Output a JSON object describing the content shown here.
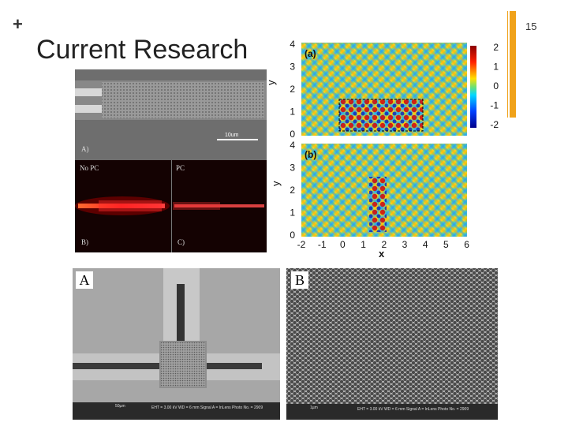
{
  "slide": {
    "plus": "+",
    "title": "Current Research",
    "page_number": "15"
  },
  "panel_sem_top": {
    "label_a": "A)",
    "scale": "10um",
    "label_b": "B)",
    "label_c": "C)",
    "label_no_pc": "No PC",
    "label_pc": "PC"
  },
  "field_plots": {
    "top_tag": "(a)",
    "bottom_tag": "(b)",
    "y_axis_label": "y",
    "x_axis_label": "x",
    "y_ticks": [
      "4",
      "3",
      "2",
      "1",
      "0"
    ],
    "x_ticks": [
      "-2",
      "-1",
      "0",
      "1",
      "2",
      "3",
      "4",
      "5",
      "6"
    ],
    "colorbar_ticks": [
      "2",
      "1",
      "0",
      "-1",
      "-2"
    ]
  },
  "bottom_left": {
    "tag": "A",
    "footer_scale": "50µm",
    "footer_text": "EHT = 3.00 kV   WD = 6 mm   Signal A = InLens   Photo No. = 2909"
  },
  "bottom_right": {
    "tag": "B",
    "footer_scale": "1µm",
    "footer_text": "EHT = 3.00 kV   WD = 6 mm   Signal A = InLens   Photo No. = 2909"
  }
}
